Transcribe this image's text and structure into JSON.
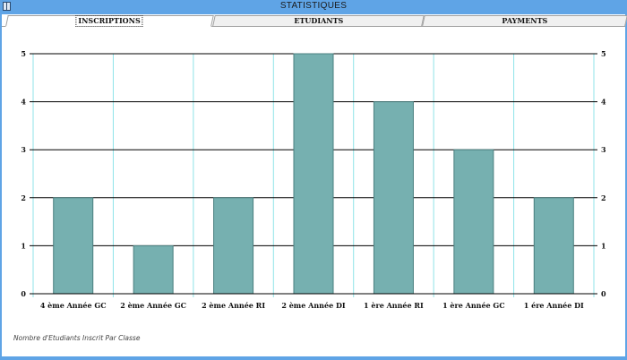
{
  "window": {
    "title": "STATISTIQUES"
  },
  "tabs": [
    {
      "label": "INSCRIPTIONS",
      "active": true
    },
    {
      "label": "ETUDIANTS",
      "active": false
    },
    {
      "label": "PAYMENTS",
      "active": false
    }
  ],
  "caption": "Nombre d'Etudiants Inscrit Par Classe",
  "colors": {
    "bar_fill": "#76b0b0",
    "bar_stroke": "#4a7f7f",
    "vgrid": "#8fe3e8",
    "hgrid": "#000000",
    "titlebar": "#5fa4e6"
  },
  "chart_data": {
    "type": "bar",
    "categories": [
      "4 ème Année GC",
      "2 ème Année GC",
      "2 ème Année RI",
      "2 ème Année DI",
      "1 ère Année RI",
      "1 ère Année GC",
      "1 ére Année DI"
    ],
    "values": [
      2,
      1,
      2,
      5,
      4,
      3,
      2
    ],
    "ylim": [
      0,
      5
    ],
    "yticks": [
      "0",
      "1",
      "2",
      "3",
      "4",
      "5"
    ],
    "title": "",
    "xlabel": "",
    "ylabel": "",
    "grid": true,
    "legend": "none"
  }
}
